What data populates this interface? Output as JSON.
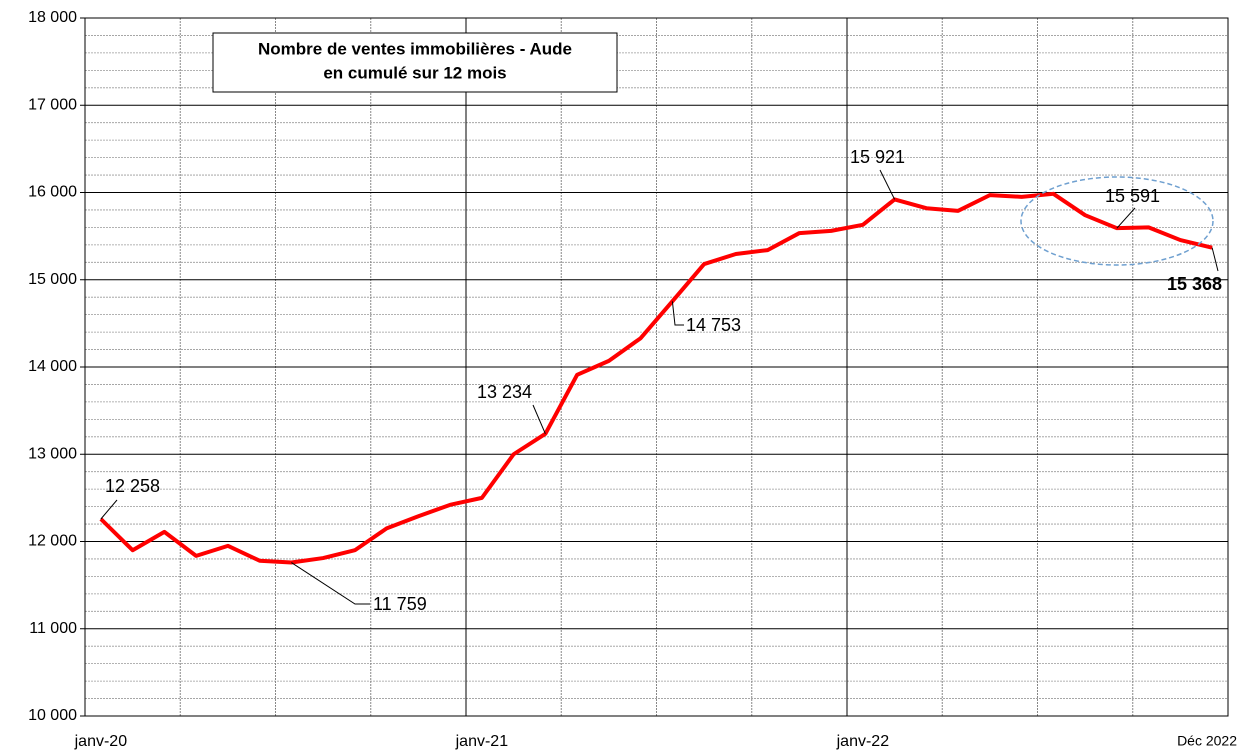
{
  "chart_data": {
    "type": "line",
    "title": [
      "Nombre de ventes immobilières - Aude",
      "en cumulé sur 12 mois"
    ],
    "categories": [
      "janv-20",
      null,
      null,
      null,
      null,
      null,
      null,
      null,
      null,
      null,
      null,
      null,
      "janv-21",
      null,
      null,
      null,
      null,
      null,
      null,
      null,
      null,
      null,
      null,
      null,
      "janv-22",
      null,
      null,
      null,
      null,
      null,
      null,
      null,
      null,
      null,
      null,
      "Déc 2022"
    ],
    "series": [
      {
        "name": "Nombre de ventes",
        "color": "#ff0000",
        "values": [
          12258,
          11900,
          12110,
          11835,
          11950,
          11780,
          11759,
          11810,
          11900,
          12150,
          12290,
          12420,
          12500,
          13000,
          13234,
          13910,
          14070,
          14330,
          14753,
          15180,
          15295,
          15340,
          15535,
          15560,
          15630,
          15921,
          15820,
          15790,
          15970,
          15950,
          15985,
          15740,
          15591,
          15600,
          15455,
          15368
        ],
        "value_labels": [
          "12 258",
          null,
          null,
          null,
          null,
          null,
          "11 759",
          null,
          null,
          null,
          null,
          null,
          null,
          null,
          "13 234",
          null,
          null,
          null,
          "14 753",
          null,
          null,
          null,
          null,
          null,
          null,
          "15 921",
          null,
          null,
          null,
          null,
          null,
          null,
          "15 591",
          null,
          null,
          "15 368"
        ]
      }
    ],
    "ylim": [
      10000,
      18000
    ],
    "yticks": [
      {
        "value": 10000,
        "label": "10 000"
      },
      {
        "value": 11000,
        "label": "11 000"
      },
      {
        "value": 12000,
        "label": "12 000"
      },
      {
        "value": 13000,
        "label": "13 000"
      },
      {
        "value": 14000,
        "label": "14 000"
      },
      {
        "value": 15000,
        "label": "15 000"
      },
      {
        "value": 16000,
        "label": "16 000"
      },
      {
        "value": 17000,
        "label": "17 000"
      },
      {
        "value": 18000,
        "label": "18 000"
      }
    ],
    "grid": true
  }
}
